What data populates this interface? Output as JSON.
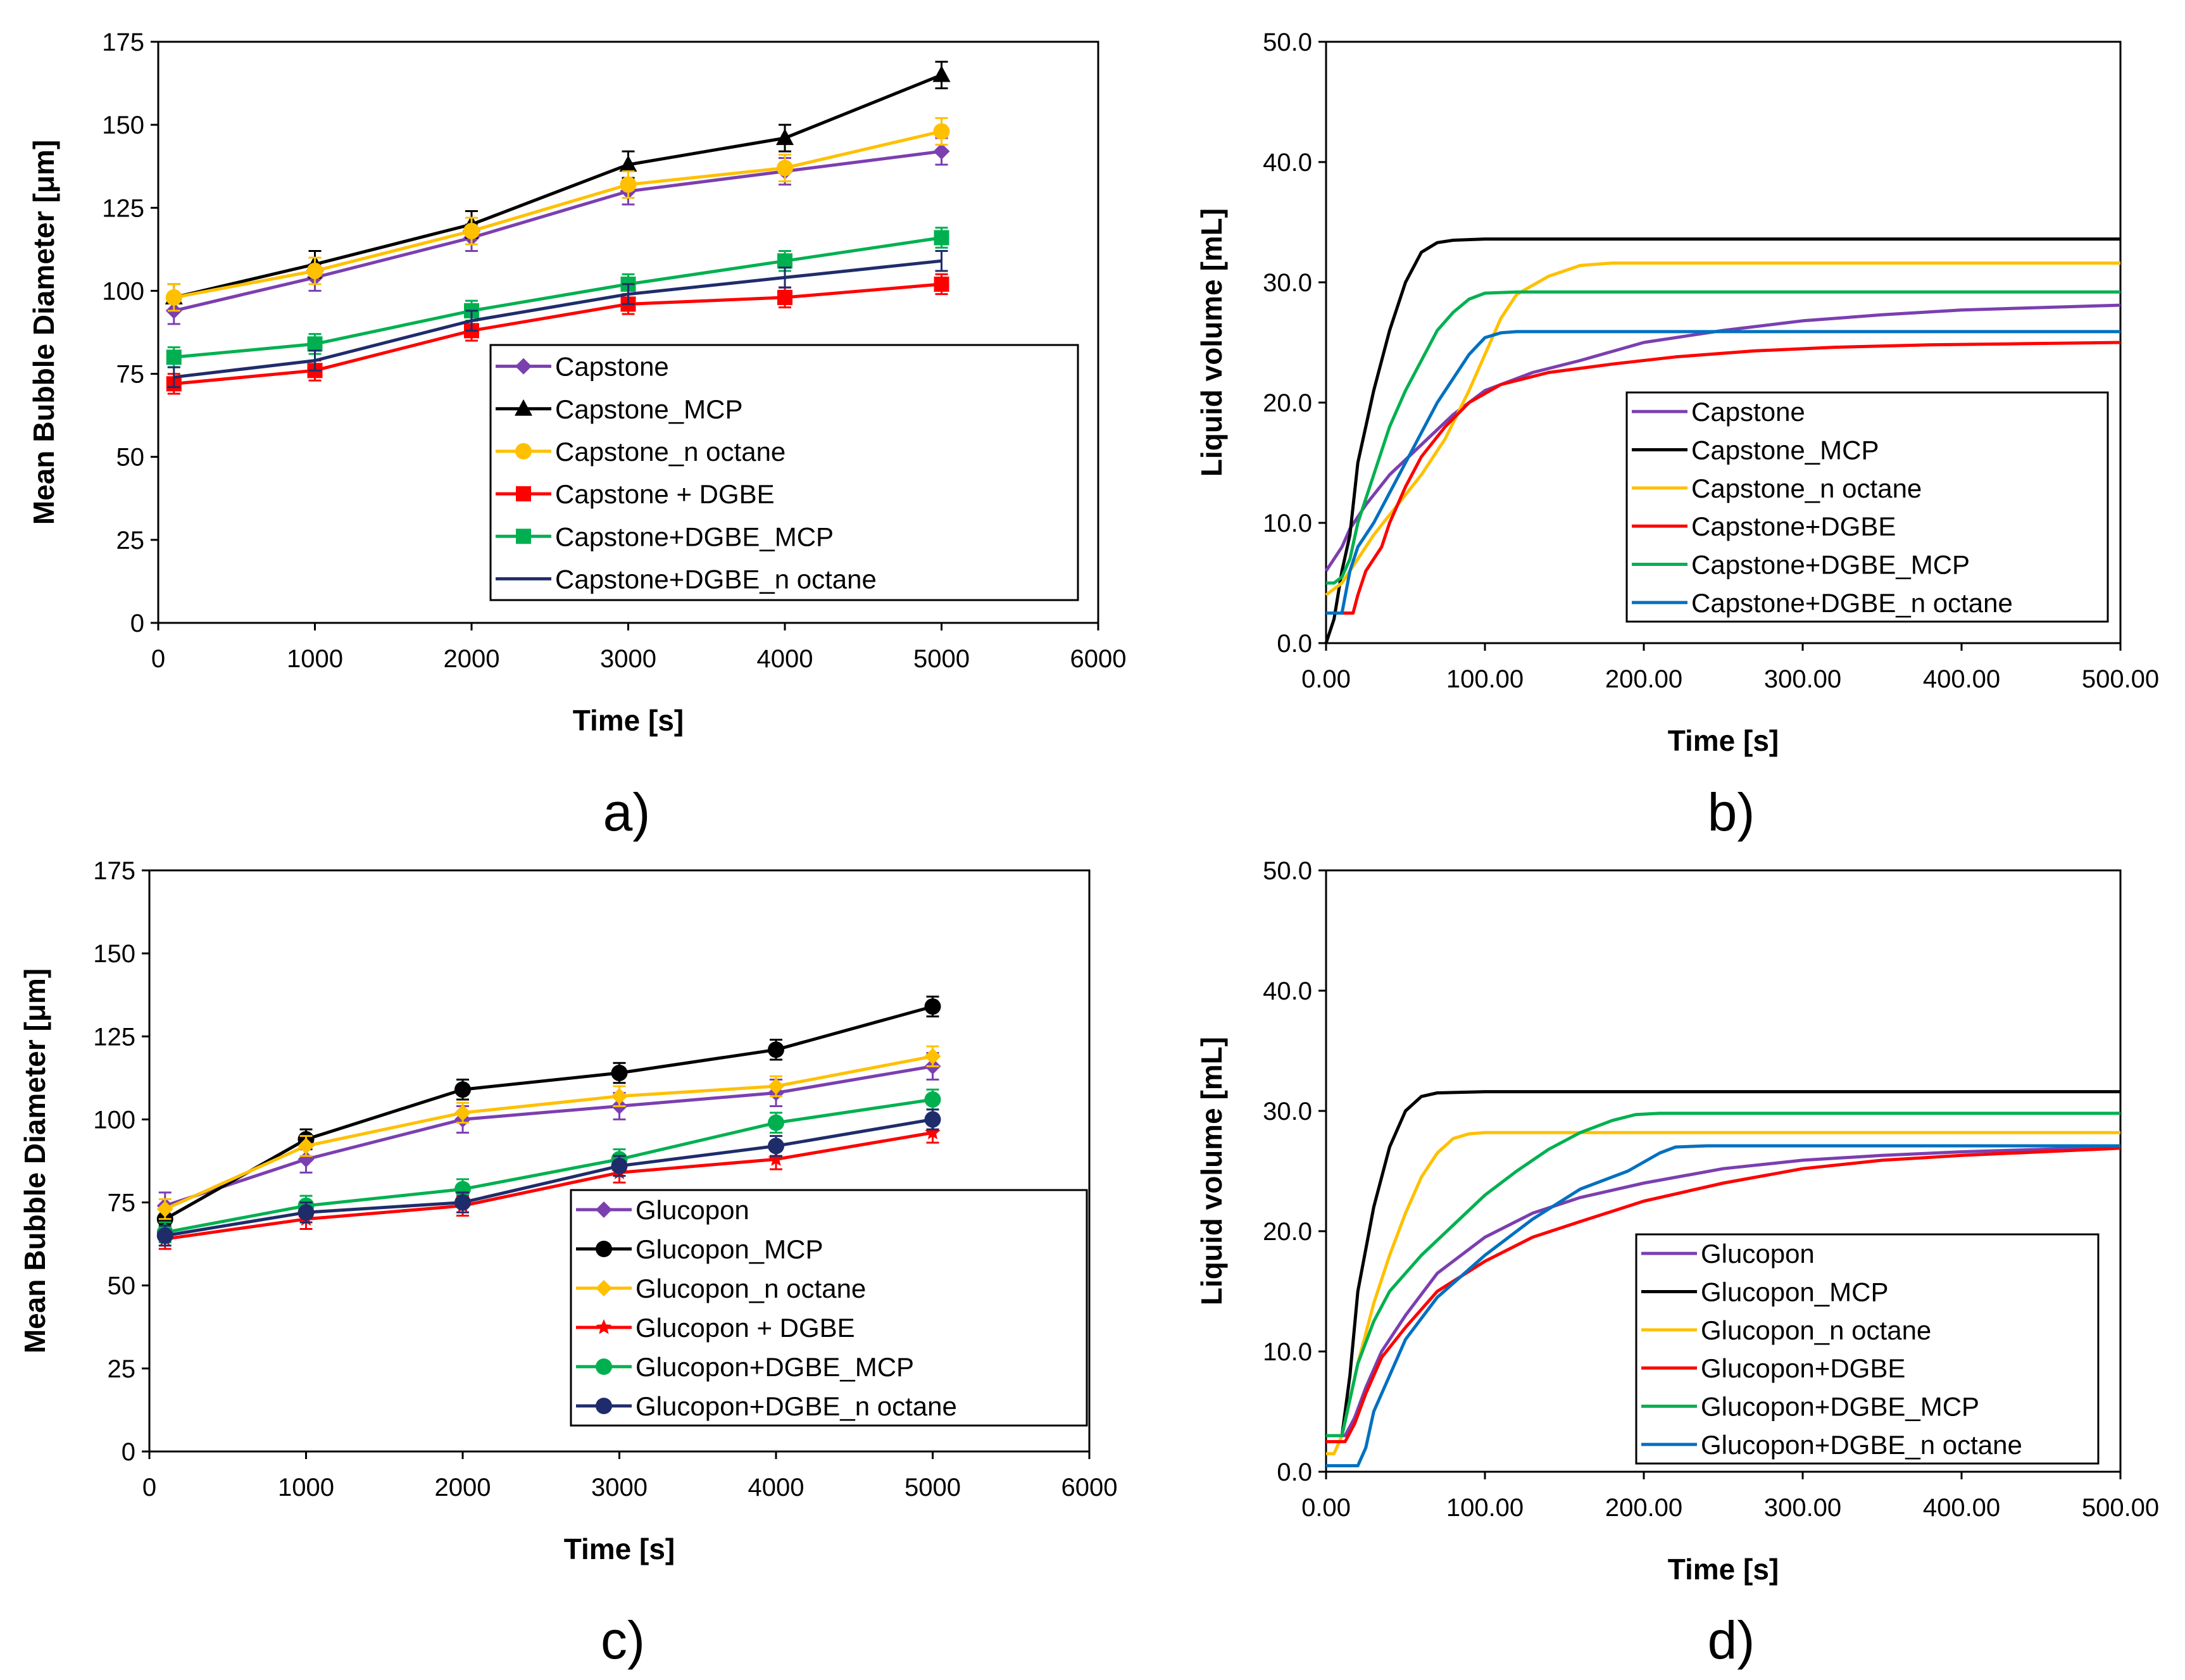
{
  "figure": {
    "panel_count": 4
  },
  "colors": {
    "purple": "#7b3fb0",
    "black": "#000000",
    "yellow": "#ffc000",
    "red": "#ff0000",
    "green": "#00b050",
    "navy": "#1f2c6b",
    "blue": "#0070c0"
  },
  "chart_data": [
    {
      "panel": "a)",
      "type": "line",
      "xlabel": "Time [s]",
      "ylabel": "Mean Bubble Diameter [μm]",
      "xlim": [
        0,
        6000
      ],
      "ylim": [
        0,
        175
      ],
      "xticks": [
        "0",
        "1000",
        "2000",
        "3000",
        "4000",
        "5000",
        "6000"
      ],
      "yticks": [
        "0",
        "25",
        "50",
        "75",
        "100",
        "125",
        "150",
        "175"
      ],
      "legend_position": "bottom-right",
      "x": [
        100,
        1000,
        2000,
        3000,
        4000,
        5000
      ],
      "series": [
        {
          "name": "Capstone",
          "color": "#7b3fb0",
          "marker": "diamond",
          "values": [
            94,
            104,
            116,
            130,
            136,
            142
          ],
          "error": 4
        },
        {
          "name": "Capstone_MCP",
          "color": "#000000",
          "marker": "triangle",
          "values": [
            98,
            108,
            120,
            138,
            146,
            165
          ],
          "error": 4
        },
        {
          "name": "Capstone_n octane",
          "color": "#ffc000",
          "marker": "circle",
          "values": [
            98,
            106,
            118,
            132,
            137,
            148
          ],
          "error": 4
        },
        {
          "name": "Capstone + DGBE",
          "color": "#ff0000",
          "marker": "square",
          "values": [
            72,
            76,
            88,
            96,
            98,
            102
          ],
          "error": 3
        },
        {
          "name": "Capstone+DGBE_MCP",
          "color": "#00b050",
          "marker": "square",
          "values": [
            80,
            84,
            94,
            102,
            109,
            116
          ],
          "error": 3
        },
        {
          "name": "Capstone+DGBE_n octane",
          "color": "#1f2c6b",
          "marker": "none",
          "values": [
            74,
            79,
            91,
            99,
            104,
            109
          ],
          "error": 3
        }
      ]
    },
    {
      "panel": "b)",
      "type": "line",
      "xlabel": "Time [s]",
      "ylabel": "Liquid volume [mL]",
      "xlim": [
        0,
        500
      ],
      "ylim": [
        0,
        50
      ],
      "xticks": [
        "0.00",
        "100.00",
        "200.00",
        "300.00",
        "400.00",
        "500.00"
      ],
      "yticks": [
        "0.0",
        "10.0",
        "20.0",
        "30.0",
        "40.0",
        "50.0"
      ],
      "legend_position": "bottom-right",
      "series": [
        {
          "name": "Capstone",
          "color": "#7b3fb0",
          "points": [
            [
              0,
              6
            ],
            [
              5,
              7
            ],
            [
              10,
              8
            ],
            [
              15,
              9.5
            ],
            [
              25,
              11.5
            ],
            [
              40,
              14
            ],
            [
              60,
              16.5
            ],
            [
              80,
              19
            ],
            [
              100,
              21
            ],
            [
              130,
              22.5
            ],
            [
              160,
              23.5
            ],
            [
              200,
              25
            ],
            [
              250,
              26
            ],
            [
              300,
              26.8
            ],
            [
              350,
              27.3
            ],
            [
              400,
              27.7
            ],
            [
              450,
              27.9
            ],
            [
              500,
              28.1
            ]
          ]
        },
        {
          "name": "Capstone_MCP",
          "color": "#000000",
          "points": [
            [
              0,
              0
            ],
            [
              5,
              2
            ],
            [
              10,
              6
            ],
            [
              15,
              9
            ],
            [
              20,
              15
            ],
            [
              30,
              21
            ],
            [
              40,
              26
            ],
            [
              50,
              30
            ],
            [
              60,
              32.5
            ],
            [
              70,
              33.3
            ],
            [
              80,
              33.5
            ],
            [
              100,
              33.6
            ],
            [
              500,
              33.6
            ]
          ]
        },
        {
          "name": "Capstone_n octane",
          "color": "#ffc000",
          "points": [
            [
              0,
              4
            ],
            [
              5,
              4.5
            ],
            [
              10,
              5
            ],
            [
              20,
              7
            ],
            [
              30,
              9
            ],
            [
              45,
              11.5
            ],
            [
              60,
              14
            ],
            [
              75,
              17
            ],
            [
              90,
              21
            ],
            [
              100,
              24
            ],
            [
              110,
              27
            ],
            [
              120,
              29
            ],
            [
              140,
              30.5
            ],
            [
              160,
              31.4
            ],
            [
              180,
              31.6
            ],
            [
              500,
              31.6
            ]
          ]
        },
        {
          "name": "Capstone+DGBE",
          "color": "#ff0000",
          "points": [
            [
              0,
              2.5
            ],
            [
              17,
              2.5
            ],
            [
              20,
              4
            ],
            [
              25,
              6
            ],
            [
              35,
              8
            ],
            [
              40,
              10
            ],
            [
              50,
              13
            ],
            [
              60,
              15.5
            ],
            [
              75,
              18
            ],
            [
              90,
              20
            ],
            [
              110,
              21.5
            ],
            [
              140,
              22.5
            ],
            [
              180,
              23.2
            ],
            [
              220,
              23.8
            ],
            [
              270,
              24.3
            ],
            [
              320,
              24.6
            ],
            [
              380,
              24.8
            ],
            [
              440,
              24.9
            ],
            [
              500,
              25
            ]
          ]
        },
        {
          "name": "Capstone+DGBE_MCP",
          "color": "#00b050",
          "points": [
            [
              0,
              5
            ],
            [
              5,
              5
            ],
            [
              10,
              5.5
            ],
            [
              15,
              7
            ],
            [
              20,
              10
            ],
            [
              30,
              14
            ],
            [
              40,
              18
            ],
            [
              50,
              21
            ],
            [
              60,
              23.5
            ],
            [
              70,
              26
            ],
            [
              80,
              27.5
            ],
            [
              90,
              28.6
            ],
            [
              100,
              29.1
            ],
            [
              120,
              29.2
            ],
            [
              500,
              29.2
            ]
          ]
        },
        {
          "name": "Capstone+DGBE_n octane",
          "color": "#0070c0",
          "points": [
            [
              0,
              2.5
            ],
            [
              10,
              2.5
            ],
            [
              15,
              6
            ],
            [
              20,
              8
            ],
            [
              30,
              10
            ],
            [
              40,
              12.5
            ],
            [
              50,
              15
            ],
            [
              60,
              17.5
            ],
            [
              70,
              20
            ],
            [
              80,
              22
            ],
            [
              90,
              24
            ],
            [
              100,
              25.4
            ],
            [
              110,
              25.8
            ],
            [
              120,
              25.9
            ],
            [
              500,
              25.9
            ]
          ]
        }
      ]
    },
    {
      "panel": "c)",
      "type": "line",
      "xlabel": "Time [s]",
      "ylabel": "Mean Bubble Diameter [μm]",
      "xlim": [
        0,
        6000
      ],
      "ylim": [
        0,
        175
      ],
      "xticks": [
        "0",
        "1000",
        "2000",
        "3000",
        "4000",
        "5000",
        "6000"
      ],
      "yticks": [
        "0",
        "25",
        "50",
        "75",
        "100",
        "125",
        "150",
        "175"
      ],
      "legend_position": "bottom-right",
      "x": [
        100,
        1000,
        2000,
        3000,
        4000,
        5000
      ],
      "series": [
        {
          "name": "Glucopon",
          "color": "#7b3fb0",
          "marker": "diamond",
          "values": [
            74,
            88,
            100,
            104,
            108,
            116
          ],
          "error": 4
        },
        {
          "name": "Glucopon_MCP",
          "color": "#000000",
          "marker": "circle",
          "values": [
            70,
            94,
            109,
            114,
            121,
            134
          ],
          "error": 3
        },
        {
          "name": "Glucopon_n octane",
          "color": "#ffc000",
          "marker": "diamond",
          "values": [
            73,
            92,
            102,
            107,
            110,
            119
          ],
          "error": 3
        },
        {
          "name": "Glucopon + DGBE",
          "color": "#ff0000",
          "marker": "star",
          "values": [
            64,
            70,
            74,
            84,
            88,
            96
          ],
          "error": 3
        },
        {
          "name": "Glucopon+DGBE_MCP",
          "color": "#00b050",
          "marker": "circle",
          "values": [
            66,
            74,
            79,
            88,
            99,
            106
          ],
          "error": 3
        },
        {
          "name": "Glucopon+DGBE_n octane",
          "color": "#1f2c6b",
          "marker": "circle",
          "values": [
            65,
            72,
            75,
            86,
            92,
            100
          ],
          "error": 3
        }
      ]
    },
    {
      "panel": "d)",
      "type": "line",
      "xlabel": "Time [s]",
      "ylabel": "Liquid volume [mL]",
      "xlim": [
        0,
        500
      ],
      "ylim": [
        0,
        50
      ],
      "xticks": [
        "0.00",
        "100.00",
        "200.00",
        "300.00",
        "400.00",
        "500.00"
      ],
      "yticks": [
        "0.0",
        "10.0",
        "20.0",
        "30.0",
        "40.0",
        "50.0"
      ],
      "legend_position": "bottom-right",
      "series": [
        {
          "name": "Glucopon",
          "color": "#7b3fb0",
          "points": [
            [
              0,
              3
            ],
            [
              12,
              3
            ],
            [
              18,
              4.5
            ],
            [
              25,
              7
            ],
            [
              35,
              10
            ],
            [
              50,
              13
            ],
            [
              70,
              16.5
            ],
            [
              100,
              19.5
            ],
            [
              130,
              21.5
            ],
            [
              160,
              22.8
            ],
            [
              200,
              24
            ],
            [
              250,
              25.2
            ],
            [
              300,
              25.9
            ],
            [
              350,
              26.3
            ],
            [
              400,
              26.6
            ],
            [
              450,
              26.8
            ],
            [
              500,
              27
            ]
          ]
        },
        {
          "name": "Glucopon_MCP",
          "color": "#000000",
          "points": [
            [
              0,
              3
            ],
            [
              10,
              3
            ],
            [
              15,
              8
            ],
            [
              20,
              15
            ],
            [
              30,
              22
            ],
            [
              40,
              27
            ],
            [
              50,
              30
            ],
            [
              60,
              31.2
            ],
            [
              70,
              31.5
            ],
            [
              100,
              31.6
            ],
            [
              500,
              31.6
            ]
          ]
        },
        {
          "name": "Glucopon_n octane",
          "color": "#ffc000",
          "points": [
            [
              0,
              1.5
            ],
            [
              5,
              1.5
            ],
            [
              10,
              3
            ],
            [
              15,
              6
            ],
            [
              20,
              9
            ],
            [
              30,
              14
            ],
            [
              40,
              18
            ],
            [
              50,
              21.5
            ],
            [
              60,
              24.5
            ],
            [
              70,
              26.5
            ],
            [
              80,
              27.7
            ],
            [
              90,
              28.1
            ],
            [
              100,
              28.2
            ],
            [
              500,
              28.2
            ]
          ]
        },
        {
          "name": "Glucopon+DGBE",
          "color": "#ff0000",
          "points": [
            [
              0,
              2.5
            ],
            [
              12,
              2.5
            ],
            [
              18,
              4
            ],
            [
              25,
              6.5
            ],
            [
              35,
              9.5
            ],
            [
              50,
              12
            ],
            [
              70,
              15
            ],
            [
              100,
              17.5
            ],
            [
              130,
              19.5
            ],
            [
              160,
              20.8
            ],
            [
              200,
              22.5
            ],
            [
              250,
              24
            ],
            [
              300,
              25.2
            ],
            [
              350,
              25.9
            ],
            [
              400,
              26.3
            ],
            [
              450,
              26.6
            ],
            [
              500,
              26.9
            ]
          ]
        },
        {
          "name": "Glucopon+DGBE_MCP",
          "color": "#00b050",
          "points": [
            [
              0,
              3
            ],
            [
              10,
              3
            ],
            [
              15,
              6
            ],
            [
              20,
              9
            ],
            [
              30,
              12.5
            ],
            [
              40,
              15
            ],
            [
              60,
              18
            ],
            [
              80,
              20.5
            ],
            [
              100,
              23
            ],
            [
              120,
              25
            ],
            [
              140,
              26.8
            ],
            [
              160,
              28.2
            ],
            [
              180,
              29.2
            ],
            [
              195,
              29.7
            ],
            [
              210,
              29.8
            ],
            [
              500,
              29.8
            ]
          ]
        },
        {
          "name": "Glucopon+DGBE_n octane",
          "color": "#0070c0",
          "points": [
            [
              0,
              0.5
            ],
            [
              20,
              0.5
            ],
            [
              25,
              2
            ],
            [
              30,
              5
            ],
            [
              40,
              8
            ],
            [
              50,
              11
            ],
            [
              70,
              14.5
            ],
            [
              100,
              18
            ],
            [
              130,
              21
            ],
            [
              160,
              23.5
            ],
            [
              190,
              25
            ],
            [
              210,
              26.5
            ],
            [
              220,
              27
            ],
            [
              240,
              27.1
            ],
            [
              500,
              27.1
            ]
          ]
        }
      ]
    }
  ]
}
